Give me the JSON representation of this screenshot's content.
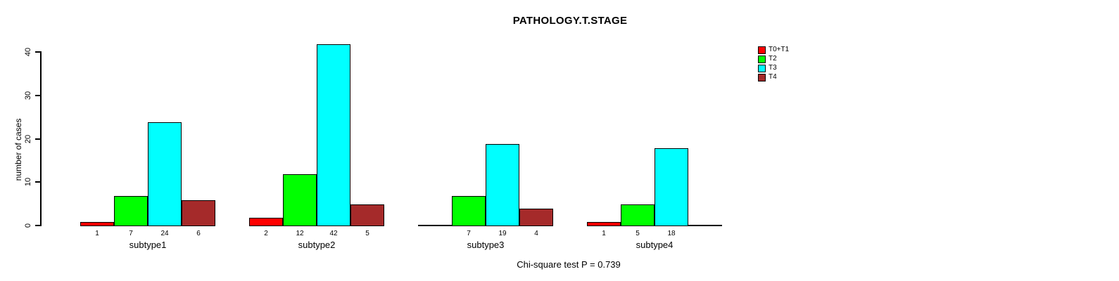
{
  "chart_data": {
    "type": "bar",
    "title": "PATHOLOGY.T.STAGE",
    "ylabel": "number of cases",
    "xlabel": "",
    "ylim": [
      0,
      44
    ],
    "yticks": [
      0,
      10,
      20,
      30,
      40
    ],
    "grid": false,
    "legend_position": "top-right",
    "categories": [
      "subtype1",
      "subtype2",
      "subtype3",
      "subtype4"
    ],
    "series": [
      {
        "name": "T0+T1",
        "color": "#ff0000",
        "values": [
          1,
          2,
          0,
          1
        ]
      },
      {
        "name": "T2",
        "color": "#00ff00",
        "values": [
          7,
          12,
          7,
          5
        ]
      },
      {
        "name": "T3",
        "color": "#00ffff",
        "values": [
          24,
          42,
          19,
          18
        ]
      },
      {
        "name": "T4",
        "color": "#a52a2a",
        "values": [
          6,
          5,
          4,
          0
        ]
      }
    ],
    "bar_value_labels_note": "value printed under each bar, omitted when value is 0",
    "annotation": "Chi-square test P = 0.739",
    "axis_color": "#000000"
  }
}
